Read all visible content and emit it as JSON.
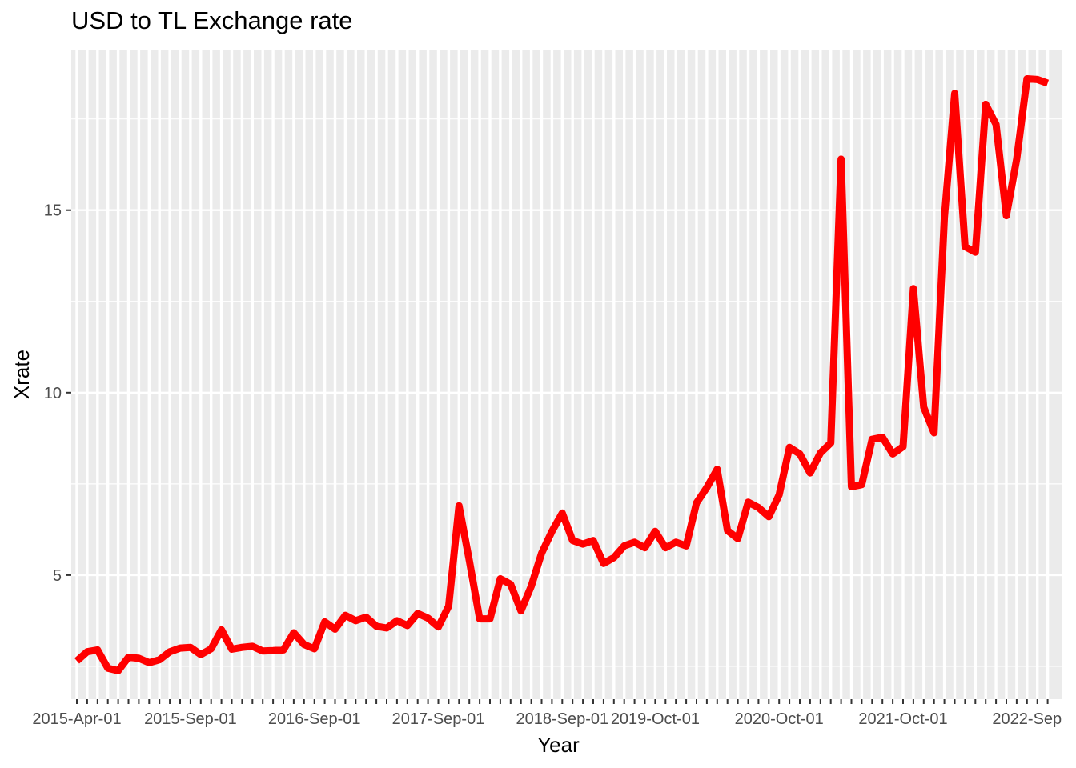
{
  "chart_data": {
    "type": "line",
    "title": "USD to TL Exchange rate",
    "xlabel": "Year",
    "ylabel": "Xrate",
    "ylim": [
      1.6,
      19.4
    ],
    "y_ticks": [
      5,
      10,
      15
    ],
    "y_tick_labels": [
      "5",
      "10",
      "15"
    ],
    "x_tick_labels": [
      "2015-Apr-01",
      "2015-Sep-01",
      "2016-Sep-01",
      "2017-Sep-01",
      "2018-Sep-01",
      "2019-Oct-01",
      "2020-Oct-01",
      "2021-Oct-01",
      "2022-Sep"
    ],
    "x_tick_positions": [
      0,
      11,
      23,
      35,
      47,
      56,
      68,
      80,
      92
    ],
    "grid": true,
    "series": [
      {
        "color": "#ff0000",
        "values": [
          2.65,
          2.9,
          2.95,
          2.45,
          2.38,
          2.75,
          2.72,
          2.6,
          2.68,
          2.9,
          3.0,
          3.02,
          2.82,
          2.98,
          3.5,
          2.97,
          3.02,
          3.05,
          2.92,
          2.93,
          2.95,
          3.42,
          3.1,
          2.98,
          3.72,
          3.52,
          3.9,
          3.75,
          3.85,
          3.6,
          3.55,
          3.75,
          3.62,
          3.95,
          3.82,
          3.58,
          4.15,
          6.9,
          5.4,
          3.8,
          3.8,
          4.9,
          4.75,
          4.02,
          4.7,
          5.6,
          6.2,
          6.7,
          5.95,
          5.85,
          5.95,
          5.32,
          5.48,
          5.8,
          5.9,
          5.75,
          6.2,
          5.75,
          5.9,
          5.8,
          6.98,
          7.4,
          7.9,
          6.22,
          6.0,
          7.0,
          6.85,
          6.6,
          7.2,
          8.5,
          8.32,
          7.8,
          8.35,
          8.62,
          16.4,
          7.42,
          7.48,
          8.72,
          8.78,
          8.32,
          8.52,
          12.85,
          9.6,
          8.9,
          14.8,
          18.2,
          14.0,
          13.85,
          17.9,
          17.35,
          14.85,
          16.4,
          18.6,
          18.58,
          18.48
        ]
      }
    ]
  }
}
